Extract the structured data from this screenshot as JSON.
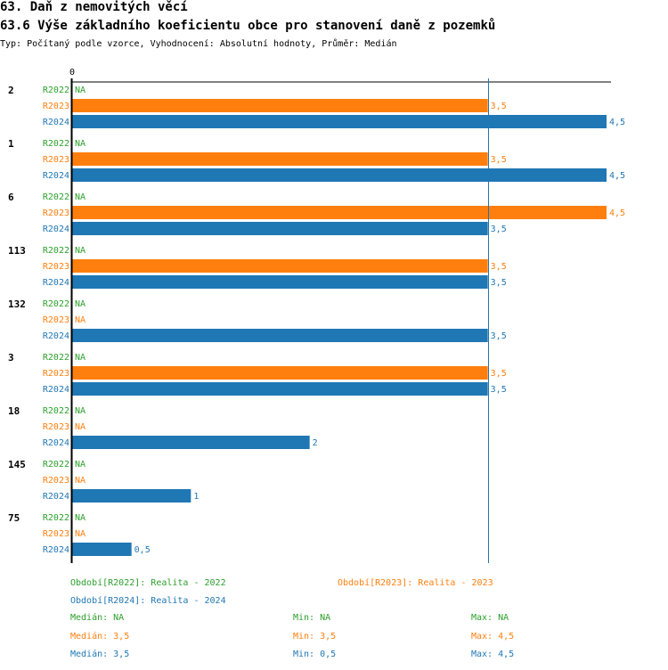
{
  "header": {
    "title": "63. Daň z nemovitých věcí",
    "subtitle": "63.6 Výše základního koeficientu obce pro stanovení daně z pozemků",
    "type_line": "Typ: Počítaný podle vzorce, Vyhodnocení: Absolutní hodnoty, Průměr: Medián"
  },
  "colors": {
    "R2022": "#2ca02c",
    "R2023": "#ff7f0e",
    "R2024": "#1f77b4"
  },
  "chart_data": {
    "type": "bar",
    "orientation": "horizontal",
    "title": "63.6 Výše základního koeficientu obce pro stanovení daně z pozemků",
    "x_axis_zero_label": "0",
    "xlim": [
      0,
      4.5
    ],
    "reference_line_value": 3.5,
    "na_label": "NA",
    "series_names": [
      "R2022",
      "R2023",
      "R2024"
    ],
    "groups": [
      {
        "label": "2",
        "values": [
          null,
          3.5,
          4.5
        ],
        "value_labels": [
          "NA",
          "3,5",
          "4,5"
        ]
      },
      {
        "label": "1",
        "values": [
          null,
          3.5,
          4.5
        ],
        "value_labels": [
          "NA",
          "3,5",
          "4,5"
        ]
      },
      {
        "label": "6",
        "values": [
          null,
          4.5,
          3.5
        ],
        "value_labels": [
          "NA",
          "4,5",
          "3,5"
        ]
      },
      {
        "label": "113",
        "values": [
          null,
          3.5,
          3.5
        ],
        "value_labels": [
          "NA",
          "3,5",
          "3,5"
        ]
      },
      {
        "label": "132",
        "values": [
          null,
          null,
          3.5
        ],
        "value_labels": [
          "NA",
          "NA",
          "3,5"
        ]
      },
      {
        "label": "3",
        "values": [
          null,
          3.5,
          3.5
        ],
        "value_labels": [
          "NA",
          "3,5",
          "3,5"
        ]
      },
      {
        "label": "18",
        "values": [
          null,
          null,
          2
        ],
        "value_labels": [
          "NA",
          "NA",
          "2"
        ]
      },
      {
        "label": "145",
        "values": [
          null,
          null,
          1
        ],
        "value_labels": [
          "NA",
          "NA",
          "1"
        ]
      },
      {
        "label": "75",
        "values": [
          null,
          null,
          0.5
        ],
        "value_labels": [
          "NA",
          "NA",
          "0,5"
        ]
      }
    ]
  },
  "legend": {
    "r2022": "Období[R2022]: Realita - 2022",
    "r2023": "Období[R2023]: Realita - 2023",
    "r2024": "Období[R2024]: Realita - 2024"
  },
  "stats": [
    {
      "median": "Medián: NA",
      "min": "Min: NA",
      "max": "Max: NA"
    },
    {
      "median": "Medián: 3,5",
      "min": "Min: 3,5",
      "max": "Max: 4,5"
    },
    {
      "median": "Medián: 3,5",
      "min": "Min: 0,5",
      "max": "Max: 4,5"
    }
  ]
}
